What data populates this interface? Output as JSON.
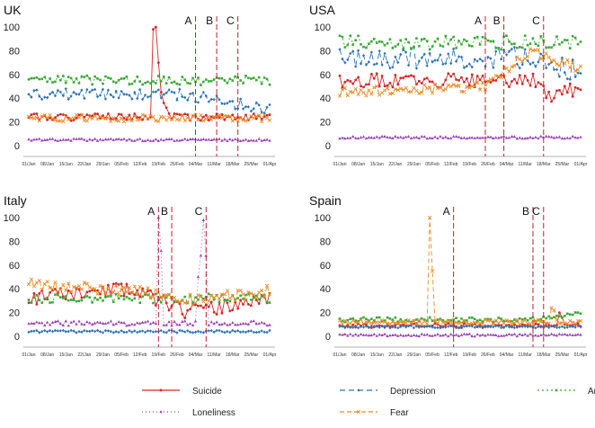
{
  "legend": [
    {
      "name": "Suicide",
      "color": "#d62728",
      "dash": "none",
      "marker": "circle"
    },
    {
      "name": "Depression",
      "color": "#2c73b8",
      "dash": "6,4",
      "marker": "diamond"
    },
    {
      "name": "Anxiety",
      "color": "#3aaa35",
      "dash": "2,3",
      "marker": "square"
    },
    {
      "name": "Loneliness",
      "color": "#9b3fb5",
      "dash": "1,3",
      "marker": "triangle"
    },
    {
      "name": "Fear",
      "color": "#f08a24",
      "dash": "5,3",
      "marker": "x"
    }
  ],
  "x_ticks": [
    "01/Jan",
    "08/Jan",
    "15/Jan",
    "22/Jan",
    "29/Jan",
    "05/Feb",
    "12/Feb",
    "19/Feb",
    "26/Feb",
    "04/Mar",
    "11/Mar",
    "18/Mar",
    "25/Mar",
    "01/Apr"
  ],
  "chart_data": [
    {
      "type": "line",
      "title": "UK",
      "ylim": [
        0,
        100
      ],
      "yticks": [
        0,
        20,
        40,
        60,
        80,
        100
      ],
      "events": [
        {
          "label": "A",
          "day": 63
        },
        {
          "label": "B",
          "day": 71
        },
        {
          "label": "C",
          "day": 79
        }
      ],
      "series": [
        {
          "name": "Suicide",
          "base": 24,
          "amp": 3,
          "seed": 1,
          "spikes": [
            [
              47,
              98
            ],
            [
              48,
              100
            ],
            [
              49,
              70
            ],
            [
              50,
              45
            ],
            [
              51,
              36
            ],
            [
              52,
              32
            ]
          ]
        },
        {
          "name": "Depression",
          "base": 43,
          "amp": 5,
          "seed": 2,
          "trend": [
            [
              0,
              0
            ],
            [
              60,
              0
            ],
            [
              91,
              -13
            ]
          ]
        },
        {
          "name": "Anxiety",
          "base": 55,
          "amp": 4,
          "seed": 3
        },
        {
          "name": "Loneliness",
          "base": 5,
          "amp": 1,
          "seed": 4
        },
        {
          "name": "Fear",
          "base": 23,
          "amp": 3,
          "seed": 5
        }
      ]
    },
    {
      "type": "line",
      "title": "USA",
      "ylim": [
        0,
        100
      ],
      "yticks": [
        0,
        20,
        40,
        60,
        80,
        100
      ],
      "events": [
        {
          "label": "A",
          "day": 55
        },
        {
          "label": "B",
          "day": 62
        },
        {
          "label": "C",
          "day": 77
        }
      ],
      "series": [
        {
          "name": "Suicide",
          "base": 55,
          "amp": 6,
          "seed": 6,
          "trend": [
            [
              0,
              0
            ],
            [
              74,
              0
            ],
            [
              78,
              -14
            ],
            [
              91,
              -6
            ]
          ]
        },
        {
          "name": "Depression",
          "base": 74,
          "amp": 9,
          "seed": 7,
          "trend": [
            [
              0,
              0
            ],
            [
              70,
              0
            ],
            [
              91,
              -12
            ]
          ]
        },
        {
          "name": "Anxiety",
          "base": 87,
          "amp": 6,
          "seed": 8
        },
        {
          "name": "Loneliness",
          "base": 7,
          "amp": 1,
          "seed": 9
        },
        {
          "name": "Fear",
          "base": 45,
          "amp": 4,
          "seed": 10,
          "trend": [
            [
              0,
              0
            ],
            [
              55,
              5
            ],
            [
              72,
              35
            ],
            [
              91,
              20
            ]
          ]
        }
      ]
    },
    {
      "type": "line",
      "title": "Italy",
      "ylim": [
        0,
        100
      ],
      "yticks": [
        0,
        20,
        40,
        60,
        80,
        100
      ],
      "events": [
        {
          "label": "A",
          "day": 49
        },
        {
          "label": "B",
          "day": 54
        },
        {
          "label": "C",
          "day": 67
        }
      ],
      "series": [
        {
          "name": "Suicide",
          "base": 32,
          "amp": 6,
          "seed": 11,
          "trend": [
            [
              0,
              0
            ],
            [
              40,
              8
            ],
            [
              60,
              -12
            ],
            [
              91,
              0
            ]
          ]
        },
        {
          "name": "Depression",
          "base": 4,
          "amp": 1,
          "seed": 12
        },
        {
          "name": "Anxiety",
          "base": 32,
          "amp": 4,
          "seed": 13
        },
        {
          "name": "Loneliness",
          "base": 11,
          "amp": 2,
          "seed": 14,
          "spikes": [
            [
              49,
              100
            ],
            [
              50,
              72
            ],
            [
              64,
              50
            ],
            [
              65,
              68
            ],
            [
              66,
              98
            ],
            [
              67,
              68
            ]
          ]
        },
        {
          "name": "Fear",
          "base": 38,
          "amp": 5,
          "seed": 15,
          "trend": [
            [
              0,
              6
            ],
            [
              40,
              0
            ],
            [
              60,
              -8
            ],
            [
              91,
              0
            ]
          ]
        }
      ]
    },
    {
      "type": "line",
      "title": "Spain",
      "ylim": [
        0,
        100
      ],
      "yticks": [
        0,
        20,
        40,
        60,
        80,
        100
      ],
      "events": [
        {
          "label": "A",
          "day": 43
        },
        {
          "label": "B",
          "day": 73
        },
        {
          "label": "C",
          "day": 77
        }
      ],
      "series": [
        {
          "name": "Suicide",
          "base": 9,
          "amp": 2,
          "seed": 16,
          "spikes": [
            [
              83,
              20
            ],
            [
              84,
              16
            ]
          ]
        },
        {
          "name": "Depression",
          "base": 8,
          "amp": 1,
          "seed": 17
        },
        {
          "name": "Anxiety",
          "base": 14,
          "amp": 2,
          "seed": 18,
          "trend": [
            [
              0,
              0
            ],
            [
              75,
              0
            ],
            [
              91,
              5
            ]
          ]
        },
        {
          "name": "Loneliness",
          "base": 1,
          "amp": 1,
          "seed": 19
        },
        {
          "name": "Fear",
          "base": 12,
          "amp": 2,
          "seed": 20,
          "spikes": [
            [
              34,
              100
            ],
            [
              35,
              55
            ],
            [
              80,
              24
            ],
            [
              81,
              22
            ]
          ]
        }
      ]
    }
  ]
}
